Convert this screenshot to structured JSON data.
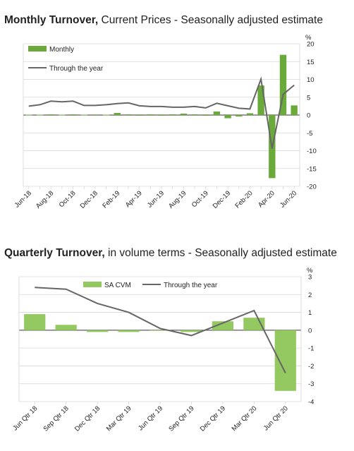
{
  "charts": [
    {
      "title_bold": "Monthly Turnover,",
      "title_regular": " Current Prices",
      "title_sep": " - ",
      "title_bold2": "Seasonally adjusted estimate",
      "unit": "%",
      "legend": [
        {
          "label": "Monthly",
          "kind": "bar"
        },
        {
          "label": "Through the year",
          "kind": "line"
        }
      ]
    },
    {
      "title_bold": "Quarterly Turnover,",
      "title_regular": " in volume terms",
      "title_sep": " - ",
      "title_bold2": "Seasonally adjusted estimate",
      "unit": "%",
      "legend": [
        {
          "label": "SA CVM",
          "kind": "bar"
        },
        {
          "label": "Through the year",
          "kind": "line"
        }
      ]
    }
  ],
  "colors": {
    "bar": "#6aaa3a",
    "bar_light": "#94c860",
    "line": "#666666",
    "grid": "#d6d6d6",
    "axis": "#333333"
  },
  "chart_data": [
    {
      "type": "bar",
      "categories": [
        "Jun-18",
        "Jul-18",
        "Aug-18",
        "Sep-18",
        "Oct-18",
        "Nov-18",
        "Dec-18",
        "Jan-19",
        "Feb-19",
        "Mar-19",
        "Apr-19",
        "May-19",
        "Jun-19",
        "Jul-19",
        "Aug-19",
        "Sep-19",
        "Oct-19",
        "Nov-19",
        "Dec-19",
        "Jan-20",
        "Feb-20",
        "Mar-20",
        "Apr-20",
        "May-20",
        "Jun-20"
      ],
      "tick_labels": [
        "Jun-18",
        "",
        "Aug-18",
        "",
        "Oct-18",
        "",
        "Dec-18",
        "",
        "Feb-19",
        "",
        "Apr-19",
        "",
        "Jun-19",
        "",
        "Aug-19",
        "",
        "Oct-19",
        "",
        "Dec-19",
        "",
        "Feb-20",
        "",
        "Apr-20",
        "",
        "Jun-20"
      ],
      "series": [
        {
          "name": "Monthly",
          "type": "bar",
          "values": [
            0.1,
            0.1,
            0.2,
            0.1,
            0.2,
            0.1,
            -0.1,
            0.1,
            0.6,
            0.2,
            -0.2,
            0.2,
            -0.2,
            0.2,
            0.4,
            0.2,
            -0.2,
            1.0,
            -0.9,
            -0.4,
            0.5,
            8.3,
            -17.7,
            16.9,
            2.7
          ]
        },
        {
          "name": "Through the year",
          "type": "line",
          "values": [
            2.5,
            2.9,
            3.9,
            3.7,
            3.9,
            2.7,
            2.7,
            2.9,
            3.2,
            3.4,
            2.6,
            2.4,
            2.4,
            2.2,
            2.2,
            2.4,
            2.0,
            3.3,
            2.6,
            1.9,
            1.7,
            10.1,
            -9.4,
            5.8,
            8.4
          ]
        }
      ],
      "ylim": [
        -20,
        20
      ],
      "yticks": [
        20,
        15,
        10,
        5,
        0,
        -5,
        -10,
        -15,
        -20
      ],
      "grid": true,
      "legend_position": "top-left"
    },
    {
      "type": "bar",
      "categories": [
        "Jun Qtr 18",
        "Sep Qtr 18",
        "Dec Qtr 18",
        "Mar Qtr 19",
        "Jun Qtr 19",
        "Sep Qtr 19",
        "Dec Qtr 19",
        "Mar Qtr 20",
        "Jun Qtr 20"
      ],
      "tick_labels": [
        "Jun Qtr 18",
        "Sep Qtr 18",
        "Dec Qtr 18",
        "Mar Qtr 19",
        "Jun Qtr 19",
        "Sep Qtr 19",
        "Dec Qtr 19",
        "Mar Qtr 20",
        "Jun Qtr 20"
      ],
      "series": [
        {
          "name": "SA CVM",
          "type": "bar",
          "values": [
            0.9,
            0.3,
            -0.1,
            -0.1,
            0.0,
            -0.1,
            0.5,
            0.7,
            -3.4
          ]
        },
        {
          "name": "Through the year",
          "type": "line",
          "values": [
            2.4,
            2.3,
            1.5,
            1.0,
            0.1,
            -0.3,
            0.4,
            1.1,
            -2.4
          ]
        }
      ],
      "ylim": [
        -4,
        3
      ],
      "yticks": [
        3,
        2,
        1,
        0,
        -1,
        -2,
        -3,
        -4
      ],
      "grid": true,
      "legend_position": "top-center"
    }
  ]
}
